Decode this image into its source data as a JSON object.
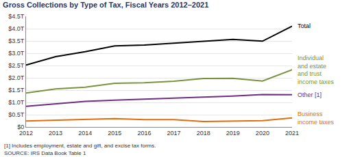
{
  "chart_data": {
    "type": "line",
    "title": "Gross Collections by Type of Tax, Fiscal Years 2012–2021",
    "x": [
      2012,
      2013,
      2014,
      2015,
      2016,
      2017,
      2018,
      2019,
      2020,
      2021
    ],
    "series": [
      {
        "name": "Total",
        "color": "#000000",
        "values": [
          2.52,
          2.86,
          3.06,
          3.3,
          3.33,
          3.4,
          3.47,
          3.56,
          3.49,
          4.1
        ]
      },
      {
        "name": "Individual and estate and trust income taxes",
        "color": "#77933c",
        "values": [
          1.38,
          1.55,
          1.62,
          1.78,
          1.8,
          1.86,
          1.97,
          1.98,
          1.87,
          2.33
        ]
      },
      {
        "name": "Other [1]",
        "color": "#6e2c82",
        "values": [
          0.84,
          0.95,
          1.04,
          1.09,
          1.13,
          1.18,
          1.2,
          1.26,
          1.32,
          1.31
        ]
      },
      {
        "name": "Business income taxes",
        "color": "#e46c0a",
        "values": [
          0.24,
          0.27,
          0.32,
          0.34,
          0.3,
          0.3,
          0.22,
          0.23,
          0.26,
          0.37
        ]
      }
    ],
    "xlim": [
      2012,
      2021
    ],
    "xticks": [
      2012,
      2013,
      2014,
      2015,
      2016,
      2017,
      2018,
      2019,
      2020,
      2021
    ],
    "ylim": [
      0,
      4.5
    ],
    "yticks": [
      {
        "value": 0,
        "label": "$0"
      },
      {
        "value": 0.5,
        "label": "$0.5T"
      },
      {
        "value": 1,
        "label": "$1.0T"
      },
      {
        "value": 1.5,
        "label": "$1.5T"
      },
      {
        "value": 2,
        "label": "$2.0T"
      },
      {
        "value": 2.5,
        "label": "$2.5T"
      },
      {
        "value": 3,
        "label": "$3.0T"
      },
      {
        "value": 3.5,
        "label": "$3.5T"
      },
      {
        "value": 4,
        "label": "$4.0T"
      },
      {
        "value": 4.5,
        "label": "$4.5T"
      }
    ],
    "grid": true,
    "notes": [
      "[1] Includes employment, estate and gift, and excise tax forms.",
      "SOURCE: IRS Data Book Table 1"
    ]
  }
}
